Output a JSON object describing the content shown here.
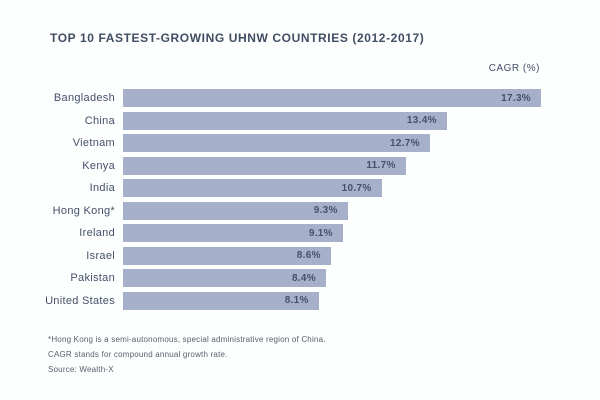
{
  "chart_data": {
    "type": "bar",
    "orientation": "horizontal",
    "title": "TOP 10 FASTEST-GROWING UHNW COUNTRIES (2012-2017)",
    "value_axis_label": "CAGR (%)",
    "categories": [
      "Bangladesh",
      "China",
      "Vietnam",
      "Kenya",
      "India",
      "Hong Kong*",
      "Ireland",
      "Israel",
      "Pakistan",
      "United States"
    ],
    "values": [
      17.3,
      13.4,
      12.7,
      11.7,
      10.7,
      9.3,
      9.1,
      8.6,
      8.4,
      8.1
    ],
    "value_labels": [
      "17.3%",
      "13.4%",
      "12.7%",
      "11.7%",
      "10.7%",
      "9.3%",
      "9.1%",
      "8.6%",
      "8.4%",
      "8.1%"
    ],
    "xlim": [
      0,
      17.3
    ],
    "grid": false,
    "legend": "none",
    "bar_color": "#a7b0cb",
    "text_color": "#44506a"
  },
  "footnotes": [
    "*Hong Kong is a semi-autonomous, special administrative region of China.",
    "CAGR stands for compound annual growth rate.",
    "Source: Wealth-X"
  ]
}
